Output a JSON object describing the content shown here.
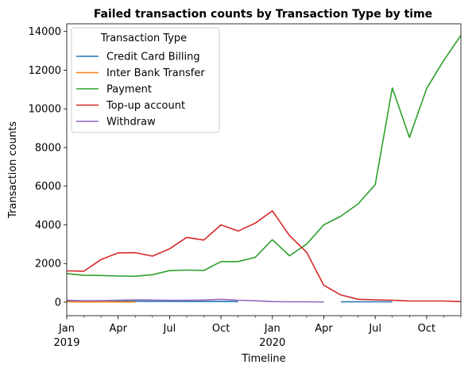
{
  "chart_data": {
    "type": "line",
    "title": "Failed transaction counts by Transaction Type by time",
    "xlabel": "Timeline",
    "ylabel": "Transaction counts",
    "ylim": [
      -700,
      14400
    ],
    "xlim": [
      "2019-01",
      "2020-12"
    ],
    "y_ticks": [
      0,
      2000,
      4000,
      6000,
      8000,
      10000,
      12000,
      14000
    ],
    "x_ticks": [
      {
        "month": "2019-01",
        "label": "Jan",
        "sublabel": "2019"
      },
      {
        "month": "2019-04",
        "label": "Apr",
        "sublabel": ""
      },
      {
        "month": "2019-07",
        "label": "Jul",
        "sublabel": ""
      },
      {
        "month": "2019-10",
        "label": "Oct",
        "sublabel": ""
      },
      {
        "month": "2020-01",
        "label": "Jan",
        "sublabel": "2020"
      },
      {
        "month": "2020-04",
        "label": "Apr",
        "sublabel": ""
      },
      {
        "month": "2020-07",
        "label": "Jul",
        "sublabel": ""
      },
      {
        "month": "2020-10",
        "label": "Oct",
        "sublabel": ""
      }
    ],
    "grid": false,
    "legend": {
      "title": "Transaction Type",
      "placement": "top-left"
    },
    "x": [
      "2019-01",
      "2019-02",
      "2019-03",
      "2019-04",
      "2019-05",
      "2019-06",
      "2019-07",
      "2019-08",
      "2019-09",
      "2019-10",
      "2019-11",
      "2019-12",
      "2020-01",
      "2020-02",
      "2020-03",
      "2020-04",
      "2020-05",
      "2020-06",
      "2020-07",
      "2020-08",
      "2020-09",
      "2020-10",
      "2020-11",
      "2020-12"
    ],
    "series": [
      {
        "name": "Credit Card Billing",
        "color": "#1f77b4",
        "values": [
          40,
          40,
          45,
          45,
          45,
          40,
          40,
          35,
          35,
          35,
          30,
          null,
          null,
          null,
          null,
          null,
          20,
          20,
          20,
          20,
          null,
          null,
          null,
          null
        ]
      },
      {
        "name": "Inter Bank Transfer",
        "color": "#ff7f0e",
        "values": [
          20,
          10,
          15,
          10,
          10,
          null,
          null,
          null,
          null,
          null,
          null,
          null,
          null,
          null,
          null,
          null,
          null,
          null,
          null,
          null,
          null,
          null,
          null,
          null
        ]
      },
      {
        "name": "Payment",
        "color": "#2ca02c",
        "values": [
          1480,
          1390,
          1380,
          1350,
          1340,
          1420,
          1630,
          1660,
          1640,
          2100,
          2100,
          2320,
          3230,
          2400,
          3000,
          4000,
          4450,
          5080,
          6080,
          11080,
          8520,
          11050,
          12500,
          13800
        ]
      },
      {
        "name": "Top-up account",
        "color": "#d62728",
        "values": [
          1620,
          1600,
          2200,
          2550,
          2560,
          2380,
          2760,
          3350,
          3210,
          4000,
          3680,
          4090,
          4720,
          3450,
          2580,
          870,
          370,
          150,
          120,
          100,
          60,
          60,
          60,
          30
        ]
      },
      {
        "name": "Withdraw",
        "color": "#9467bd",
        "values": [
          100,
          70,
          80,
          100,
          120,
          110,
          90,
          100,
          110,
          150,
          100,
          70,
          30,
          20,
          20,
          10,
          null,
          null,
          null,
          null,
          null,
          null,
          null,
          null
        ]
      }
    ]
  }
}
